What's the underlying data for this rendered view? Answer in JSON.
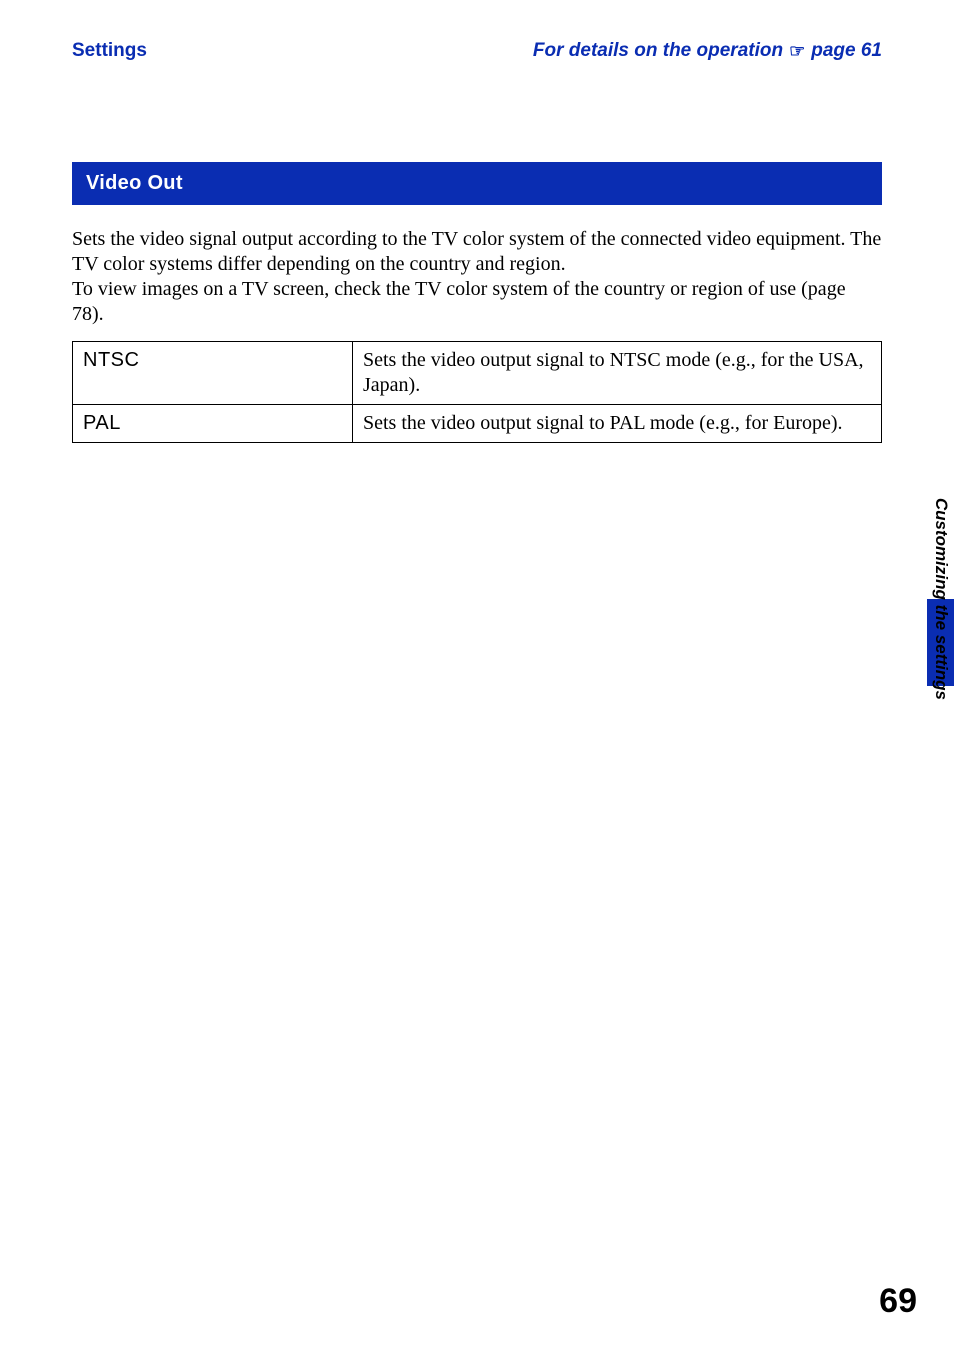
{
  "header": {
    "left": "Settings",
    "right_prefix": "For details on the operation",
    "right_suffix": "page 61",
    "hand_icon": "☞"
  },
  "section": {
    "title": "Video Out"
  },
  "body": {
    "paragraph": "Sets the video signal output according to the TV color system of the connected video equipment. The TV color systems differ depending on the country and region.\nTo view images on a TV screen, check the TV color system of the country or region of use (page 78)."
  },
  "table": {
    "rows": [
      {
        "label": "NTSC",
        "desc": "Sets the video output signal to NTSC mode (e.g., for the USA, Japan)."
      },
      {
        "label": "PAL",
        "desc": "Sets the video output signal to PAL mode (e.g., for Europe)."
      }
    ]
  },
  "side": {
    "label": "Customizing the settings"
  },
  "page": {
    "number": "69"
  },
  "colors": {
    "accent": "#0a2db2",
    "background": "#ffffff",
    "text": "#000000"
  }
}
